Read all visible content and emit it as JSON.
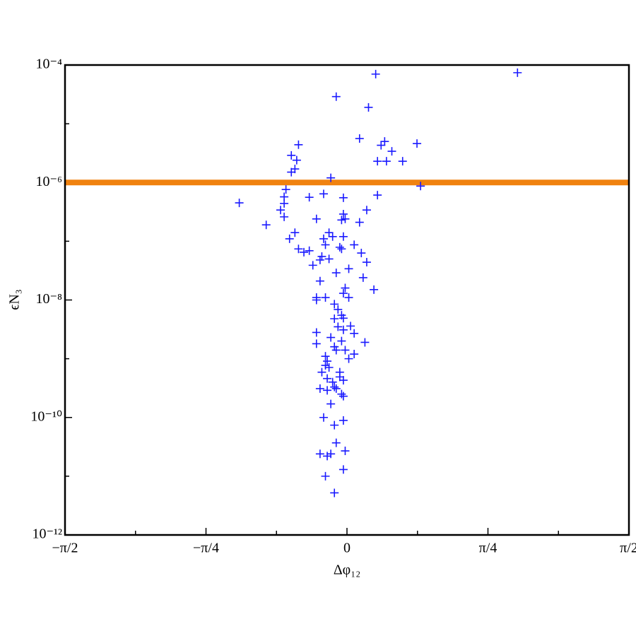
{
  "chart_data": {
    "type": "scatter",
    "xlabel": "Δφ₁₂",
    "ylabel": "ϵN₃",
    "yscale": "log",
    "xlim": [
      -1.5708,
      1.5708
    ],
    "ylim": [
      1e-12,
      0.0001
    ],
    "xticks": [
      {
        "value": -1.5708,
        "label": "−π/2"
      },
      {
        "value": -0.7854,
        "label": "−π/4"
      },
      0,
      {
        "value": 0.7854,
        "label": "π/4"
      },
      {
        "value": 1.5708,
        "label": "π/2"
      }
    ],
    "xminorticks": [
      -1.1781,
      -0.3927,
      0.3927,
      1.1781
    ],
    "yticks": [
      {
        "value": 1e-12,
        "label": "10⁻¹²"
      },
      {
        "value": 1e-10,
        "label": "10⁻¹⁰"
      },
      {
        "value": 1e-08,
        "label": "10⁻⁸"
      },
      {
        "value": 1e-06,
        "label": "10⁻⁶"
      },
      {
        "value": 0.0001,
        "label": "10⁻⁴"
      }
    ],
    "yminorticks": [
      1e-11,
      1e-09,
      1e-07,
      1e-05
    ],
    "hline": {
      "value": 1e-06,
      "color": "#f0820f"
    },
    "series": [
      {
        "color": "#1a1aff",
        "x": [
          0.16,
          0.95,
          -0.06,
          0.12,
          0.07,
          0.21,
          0.39,
          -0.27,
          0.19,
          0.25,
          -0.31,
          -0.28,
          0.17,
          0.22,
          0.31,
          -0.29,
          -0.31,
          -0.09,
          0.41,
          -0.34,
          -0.13,
          -0.21,
          0.17,
          -0.35,
          -0.02,
          -0.6,
          -0.35,
          0.11,
          -0.37,
          -0.02,
          -0.35,
          -0.17,
          -0.03,
          -0.01,
          0.07,
          -0.45,
          -0.29,
          -0.1,
          -0.08,
          -0.32,
          -0.13,
          -0.02,
          -0.12,
          0.04,
          -0.27,
          -0.04,
          -0.03,
          -0.21,
          -0.24,
          0.08,
          -0.14,
          -0.15,
          -0.1,
          0.11,
          -0.19,
          0.01,
          -0.06,
          0.09,
          -0.15,
          0.15,
          -0.01,
          -0.02,
          -0.17,
          -0.12,
          -0.17,
          0.01,
          -0.07,
          -0.05,
          -0.03,
          -0.07,
          -0.02,
          -0.05,
          0.02,
          -0.02,
          -0.17,
          0.04,
          -0.09,
          -0.03,
          0.1,
          -0.17,
          -0.07,
          -0.01,
          -0.06,
          0.04,
          -0.12,
          0.01,
          -0.11,
          -0.12,
          -0.1,
          -0.14,
          -0.04,
          -0.04,
          -0.11,
          -0.02,
          -0.08,
          -0.07,
          -0.15,
          -0.11,
          -0.06,
          -0.03,
          -0.02,
          -0.09,
          -0.13,
          -0.02,
          -0.07,
          -0.06,
          -0.01,
          -0.15,
          -0.09,
          -0.11,
          -0.02,
          -0.12,
          -0.07
        ],
        "values": [
          7e-05,
          7.4e-05,
          2.9e-05,
          1.9e-05,
          5.6e-06,
          5e-06,
          4.6e-06,
          4.4e-06,
          4.3e-06,
          3.4e-06,
          2.9e-06,
          2.4e-06,
          2.3e-06,
          2.3e-06,
          2.3e-06,
          1.7e-06,
          1.5e-06,
          1.2e-06,
          8.7e-07,
          7.6e-07,
          6.4e-07,
          5.6e-07,
          6.1e-07,
          5.7e-07,
          5.5e-07,
          4.5e-07,
          4.4e-07,
          3.4e-07,
          3.4e-07,
          2.9e-07,
          2.6e-07,
          2.4e-07,
          2.3e-07,
          2.4e-07,
          2.1e-07,
          1.9e-07,
          1.4e-07,
          1.4e-07,
          1.2e-07,
          1.1e-07,
          1.1e-07,
          1.2e-07,
          8.7e-08,
          8.7e-08,
          7.4e-08,
          7.9e-08,
          7.4e-08,
          6.9e-08,
          6.5e-08,
          6.3e-08,
          5.5e-08,
          4.8e-08,
          5e-08,
          4.4e-08,
          3.9e-08,
          3.4e-08,
          2.9e-08,
          2.4e-08,
          2.1e-08,
          1.5e-08,
          1.6e-08,
          1.3e-08,
          1.1e-08,
          1.1e-08,
          1e-08,
          1.1e-08,
          8.5e-09,
          6.9e-09,
          5.5e-09,
          4.8e-09,
          4.9e-09,
          3.5e-09,
          3.6e-09,
          3.1e-09,
          2.8e-09,
          2.7e-09,
          2.3e-09,
          2e-09,
          1.9e-09,
          1.8e-09,
          1.6e-09,
          1.4e-09,
          1.4e-09,
          1.2e-09,
          1.1e-09,
          1e-09,
          9.1e-10,
          7.7e-10,
          7.1e-10,
          5.9e-10,
          5.9e-10,
          4.9e-10,
          4.6e-10,
          4.3e-10,
          4e-10,
          3.3e-10,
          3.1e-10,
          2.9e-10,
          3.1e-10,
          2.5e-10,
          2.3e-10,
          1.7e-10,
          1e-10,
          8.9e-11,
          7.4e-11,
          3.7e-11,
          2.7e-11,
          2.4e-11,
          2.4e-11,
          2.2e-11,
          1.3e-11,
          1e-11,
          5.2e-12
        ]
      }
    ]
  }
}
